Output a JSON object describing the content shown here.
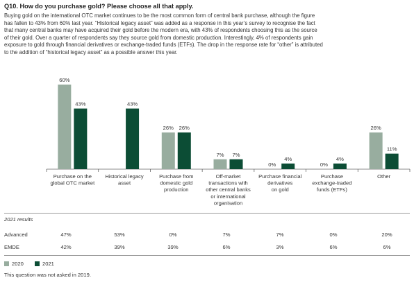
{
  "title": "Q10. How do you purchase gold? Please choose all that apply.",
  "intro_lines": [
    "Buying gold on the international OTC market continues to be the most common form of central bank purchase, although the figure",
    "has fallen to 43% from 60% last year. “Historical legacy asset” was added as a response in this year’s survey to recognise the fact",
    "that many central banks may have acquired their gold before the modern era, with 43% of respondents choosing this as the source",
    "of their gold. Over a quarter of respondents say they source gold from domestic production. Interestingly, 4% of respondents gain",
    "exposure to gold through financial derivatives or exchange-traded funds (ETFs). The drop in the response rate for “other” is attributed",
    "to the addition of “historical legacy asset” as a possible answer this year."
  ],
  "chart_data": {
    "type": "bar",
    "categories": [
      [
        "Purchase on the",
        "global OTC market"
      ],
      [
        "Historical legacy",
        "asset"
      ],
      [
        "Purchase from",
        "domestic gold",
        "production"
      ],
      [
        "Off-market",
        "transactions with",
        "other central banks",
        "or international",
        "organisation"
      ],
      [
        "Purchase financial",
        "derivatives",
        "on gold"
      ],
      [
        "Purchase",
        "exchange-traded",
        "funds (ETFs)"
      ],
      [
        "Other"
      ]
    ],
    "series": [
      {
        "name": "2020",
        "values": [
          60,
          null,
          26,
          7,
          0,
          0,
          26
        ],
        "labels": [
          "60%",
          "",
          "26%",
          "7%",
          "0%",
          "0%",
          "26%"
        ],
        "color": "#98ad9f"
      },
      {
        "name": "2021",
        "values": [
          43,
          43,
          26,
          7,
          4,
          4,
          11
        ],
        "labels": [
          "43%",
          "43%",
          "26%",
          "7%",
          "4%",
          "4%",
          "11%"
        ],
        "color": "#0c4d35"
      }
    ],
    "ylim": [
      0,
      60
    ],
    "grid": false,
    "legend": "bottom-left"
  },
  "results": {
    "header": "2021 results",
    "rows": [
      {
        "label": "Advanced",
        "values": [
          "47%",
          "53%",
          "0%",
          "7%",
          "7%",
          "0%",
          "20%"
        ]
      },
      {
        "label": "EMDE",
        "values": [
          "42%",
          "39%",
          "39%",
          "6%",
          "3%",
          "6%",
          "6%"
        ]
      }
    ]
  },
  "legend": [
    {
      "label": "2020",
      "color": "#98ad9f"
    },
    {
      "label": "2021",
      "color": "#0c4d35"
    }
  ],
  "note": "This question was not asked in 2019."
}
